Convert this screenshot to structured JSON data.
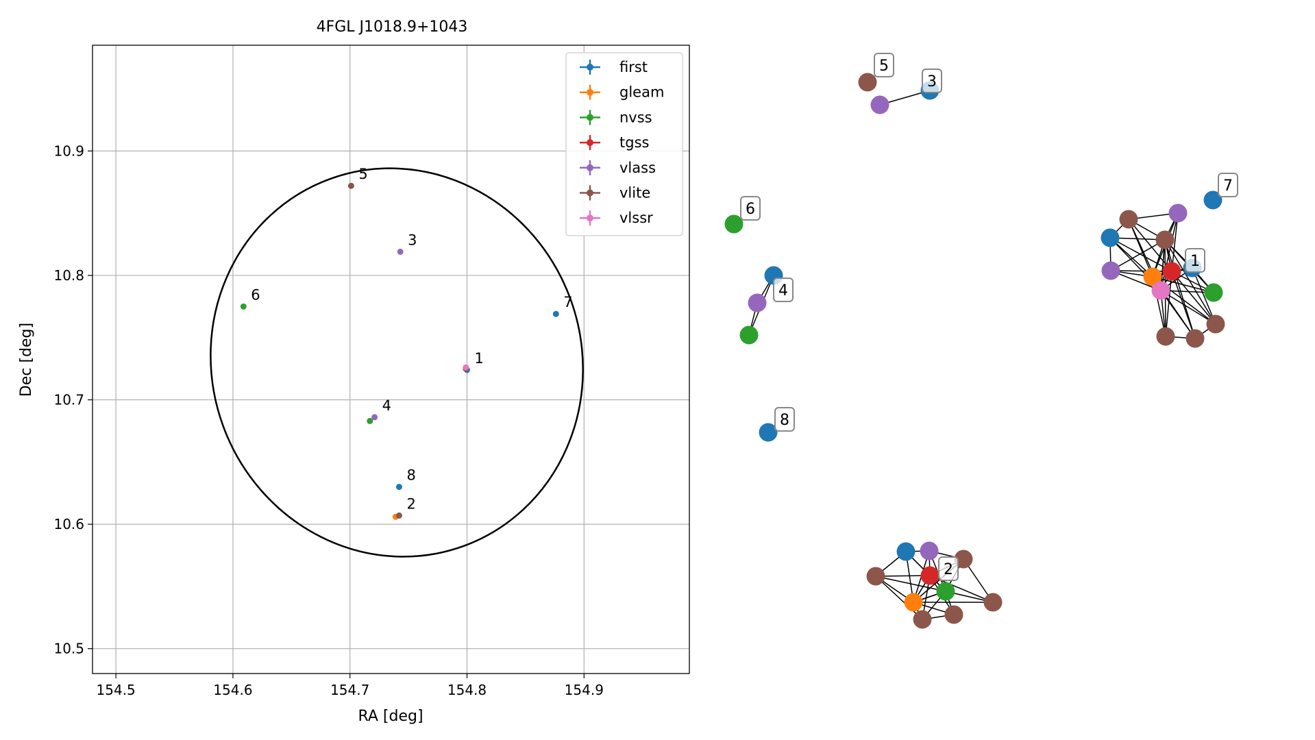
{
  "chart_data": [
    {
      "type": "scatter",
      "title": "4FGL J1018.9+1043",
      "xlabel": "RA [deg]",
      "ylabel": "Dec [deg]",
      "xlim": [
        154.48,
        154.99
      ],
      "ylim": [
        10.48,
        10.985
      ],
      "x_ticks": [
        "154.5",
        "154.6",
        "154.7",
        "154.8",
        "154.9"
      ],
      "y_ticks": [
        "10.5",
        "10.6",
        "10.7",
        "10.8",
        "10.9"
      ],
      "grid": true,
      "legend_position": "top-right",
      "colors": {
        "first": "#1f77b4",
        "gleam": "#ff7f0e",
        "nvss": "#2ca02c",
        "tgss": "#d62728",
        "vlass": "#9467bd",
        "vlite": "#8c564b",
        "vlssr": "#e377c2"
      },
      "legend": [
        "first",
        "gleam",
        "nvss",
        "tgss",
        "vlass",
        "vlite",
        "vlssr"
      ],
      "ellipse": {
        "center": [
          154.74,
          10.73
        ],
        "ra_half_width": 0.158,
        "dec_half_height": 0.157,
        "angle_deg": -20
      },
      "points": [
        {
          "survey": "vlite",
          "ra": 154.701,
          "dec": 10.872
        },
        {
          "survey": "vlass",
          "ra": 154.743,
          "dec": 10.819
        },
        {
          "survey": "nvss",
          "ra": 154.609,
          "dec": 10.775
        },
        {
          "survey": "first",
          "ra": 154.876,
          "dec": 10.769
        },
        {
          "survey": "first",
          "ra": 154.8,
          "dec": 10.724
        },
        {
          "survey": "vlite",
          "ra": 154.799,
          "dec": 10.725
        },
        {
          "survey": "vlssr",
          "ra": 154.799,
          "dec": 10.726
        },
        {
          "survey": "vlass",
          "ra": 154.721,
          "dec": 10.686
        },
        {
          "survey": "nvss",
          "ra": 154.717,
          "dec": 10.683
        },
        {
          "survey": "first",
          "ra": 154.742,
          "dec": 10.63
        },
        {
          "survey": "gleam",
          "ra": 154.739,
          "dec": 10.606
        },
        {
          "survey": "vlite",
          "ra": 154.742,
          "dec": 10.607
        }
      ],
      "cluster_labels": [
        {
          "label": "5",
          "ra": 154.701,
          "dec": 10.872
        },
        {
          "label": "3",
          "ra": 154.743,
          "dec": 10.819
        },
        {
          "label": "6",
          "ra": 154.609,
          "dec": 10.775
        },
        {
          "label": "7",
          "ra": 154.876,
          "dec": 10.769
        },
        {
          "label": "1",
          "ra": 154.8,
          "dec": 10.724
        },
        {
          "label": "4",
          "ra": 154.721,
          "dec": 10.686
        },
        {
          "label": "8",
          "ra": 154.742,
          "dec": 10.63
        },
        {
          "label": "2",
          "ra": 154.742,
          "dec": 10.607
        }
      ]
    },
    {
      "type": "network",
      "labels": [
        "5",
        "3",
        "7",
        "6",
        "4",
        "1",
        "8",
        "2"
      ],
      "nodes": [
        {
          "id": "a5",
          "survey": "vlite"
        },
        {
          "id": "a3p",
          "survey": "vlass"
        },
        {
          "id": "a3f",
          "survey": "first"
        },
        {
          "id": "a6",
          "survey": "nvss"
        },
        {
          "id": "a7",
          "survey": "first"
        },
        {
          "id": "a4f",
          "survey": "first"
        },
        {
          "id": "a4v",
          "survey": "vlass"
        },
        {
          "id": "a4n",
          "survey": "nvss"
        },
        {
          "id": "a8",
          "survey": "first"
        },
        {
          "id": "c1a",
          "survey": "vlite"
        },
        {
          "id": "c1b",
          "survey": "vlass"
        },
        {
          "id": "c1c",
          "survey": "first"
        },
        {
          "id": "c1d",
          "survey": "vlite"
        },
        {
          "id": "c1e",
          "survey": "vlass"
        },
        {
          "id": "c1f",
          "survey": "gleam"
        },
        {
          "id": "c1g",
          "survey": "tgss"
        },
        {
          "id": "c1h",
          "survey": "first"
        },
        {
          "id": "c1i",
          "survey": "vlssr"
        },
        {
          "id": "c1j",
          "survey": "nvss"
        },
        {
          "id": "c1k",
          "survey": "vlite"
        },
        {
          "id": "c1l",
          "survey": "vlite"
        },
        {
          "id": "c1m",
          "survey": "vlite"
        },
        {
          "id": "c2a",
          "survey": "first"
        },
        {
          "id": "c2b",
          "survey": "vlass"
        },
        {
          "id": "c2c",
          "survey": "vlite"
        },
        {
          "id": "c2d",
          "survey": "vlite"
        },
        {
          "id": "c2e",
          "survey": "tgss"
        },
        {
          "id": "c2f",
          "survey": "nvss"
        },
        {
          "id": "c2g",
          "survey": "gleam"
        },
        {
          "id": "c2h",
          "survey": "vlite"
        },
        {
          "id": "c2i",
          "survey": "vlite"
        },
        {
          "id": "c2j",
          "survey": "vlite"
        }
      ]
    }
  ]
}
